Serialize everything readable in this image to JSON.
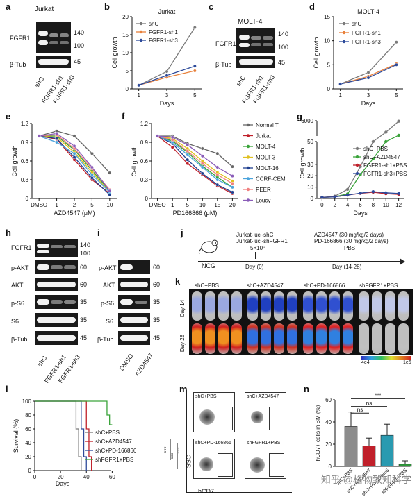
{
  "panels": {
    "a": {
      "label": "a",
      "cell_line": "Jurkat",
      "row_labels": [
        "FGFR1",
        "β-Tub"
      ],
      "markers": [
        "140",
        "100",
        "45"
      ],
      "lanes": [
        "shC",
        "FGFR1-sh1",
        "FGFR1-sh3"
      ]
    },
    "c": {
      "label": "c",
      "cell_line": "MOLT-4",
      "row_labels": [
        "FGFR1",
        "β-Tub"
      ],
      "markers": [
        "140",
        "100",
        "45"
      ],
      "lanes": [
        "shC",
        "FGFR1-sh1",
        "FGFR1-sh3"
      ]
    },
    "h": {
      "label": "h",
      "row_labels": [
        "FGFR1",
        "p-AKT",
        "AKT",
        "p-S6",
        "S6",
        "β-Tub"
      ],
      "markers": [
        "140",
        "100",
        "60",
        "60",
        "35",
        "35",
        "45"
      ],
      "lanes": [
        "shC",
        "FGFR1-sh1",
        "FGFR1-sh3"
      ]
    },
    "i": {
      "label": "i",
      "row_labels": [
        "p-AKT",
        "AKT",
        "p-S6",
        "S6",
        "β-Tub"
      ],
      "markers": [
        "60",
        "60",
        "35",
        "35",
        "45"
      ],
      "lanes": [
        "DMSO",
        "AZD4547"
      ]
    },
    "j": {
      "label": "j",
      "mouse": "NCG",
      "inj_line1": "Jurkat-luci-shC",
      "inj_line2": "Jurkat-luci-shFGFR1",
      "inj_dose": "5×10⁶",
      "day0": "Day (0)",
      "treat1": "AZD4547 (30 mg/kg/2 days)",
      "treat2": "PD-166866 (30 mg/kg/2 days)",
      "treat3": "PBS",
      "day_range": "Day (14-28)"
    },
    "k": {
      "label": "k",
      "groups": [
        "shC+PBS",
        "shC+AZD4547",
        "shC+PD-166866",
        "shFGFR1+PBS"
      ],
      "rows": [
        "Day 14",
        "Day 28"
      ],
      "scale_min": "4e4",
      "scale_max": "1e6"
    },
    "m": {
      "label": "m",
      "boxes": [
        "shC+PBS",
        "shC+AZD4547",
        "shC+PD-166866",
        "shFGFR1+PBS"
      ],
      "ylabel": "SSC",
      "xlabel": "hCD7"
    }
  },
  "watermark": "知乎 @格物致知科学",
  "chart_data": [
    {
      "panel": "b",
      "type": "line",
      "title": "Jurkat",
      "xlabel": "Days",
      "ylabel": "Cell growth",
      "x": [
        1,
        3,
        5
      ],
      "ylim": [
        0,
        20
      ],
      "yticks": [
        0,
        5,
        10,
        15,
        20
      ],
      "series": [
        {
          "name": "shC",
          "values": [
            1,
            4.8,
            17
          ],
          "color": "#7a7a7a"
        },
        {
          "name": "FGFR1-sh1",
          "values": [
            1,
            3.2,
            5
          ],
          "color": "#e8803a"
        },
        {
          "name": "FGFR1-sh3",
          "values": [
            1,
            3.7,
            6.3
          ],
          "color": "#2d4a9a"
        }
      ]
    },
    {
      "panel": "d",
      "type": "line",
      "title": "MOLT-4",
      "xlabel": "Days",
      "ylabel": "Cell growth",
      "x": [
        1,
        3,
        5
      ],
      "ylim": [
        0,
        15
      ],
      "yticks": [
        0,
        5,
        10,
        15
      ],
      "series": [
        {
          "name": "shC",
          "values": [
            1,
            3.4,
            9.7
          ],
          "color": "#7a7a7a"
        },
        {
          "name": "FGFR1-sh1",
          "values": [
            1,
            2.6,
            5.2
          ],
          "color": "#e8803a"
        },
        {
          "name": "FGFR1-sh3",
          "values": [
            1,
            2.3,
            5.0
          ],
          "color": "#2d4a9a"
        }
      ]
    },
    {
      "panel": "e",
      "type": "line",
      "xlabel": "AZD4547 (μM)",
      "ylabel": "Cell growth",
      "categories": [
        "DMSO",
        "1",
        "2",
        "5",
        "10"
      ],
      "ylim": [
        0,
        1.2
      ],
      "yticks": [
        0,
        0.3,
        0.6,
        0.9,
        1.2
      ],
      "series": [
        {
          "name": "Normal T",
          "values": [
            1.0,
            1.08,
            1.0,
            0.72,
            0.41
          ],
          "color": "#666666"
        },
        {
          "name": "Jurkat",
          "values": [
            1.0,
            0.95,
            0.62,
            0.3,
            0.08
          ],
          "color": "#c0202a"
        },
        {
          "name": "MOLT-4",
          "values": [
            1.0,
            1.0,
            0.78,
            0.45,
            0.12
          ],
          "color": "#3aa33a"
        },
        {
          "name": "MOLT-3",
          "values": [
            1.0,
            0.98,
            0.74,
            0.42,
            0.1
          ],
          "color": "#e0c020"
        },
        {
          "name": "MOLT-16",
          "values": [
            1.0,
            0.96,
            0.66,
            0.33,
            0.06
          ],
          "color": "#1f3f8f"
        },
        {
          "name": "CCRF-CEM",
          "values": [
            1.0,
            0.9,
            0.72,
            0.38,
            0.1
          ],
          "color": "#4aa3dc"
        },
        {
          "name": "PEER",
          "values": [
            1.0,
            1.02,
            0.8,
            0.48,
            0.14
          ],
          "color": "#f08080"
        },
        {
          "name": "Loucy",
          "values": [
            1.0,
            1.04,
            0.84,
            0.5,
            0.12
          ],
          "color": "#8a5cb8"
        }
      ]
    },
    {
      "panel": "f",
      "type": "line",
      "xlabel": "PD166866 (μM)",
      "ylabel": "Cell growth",
      "categories": [
        "DMSO",
        "1",
        "5",
        "10",
        "15",
        "20"
      ],
      "ylim": [
        0,
        1.2
      ],
      "yticks": [
        0,
        0.3,
        0.6,
        0.9,
        1.2
      ],
      "series": [
        {
          "name": "Normal T",
          "values": [
            1.0,
            1.0,
            0.88,
            0.8,
            0.72,
            0.51
          ],
          "color": "#666666"
        },
        {
          "name": "Jurkat",
          "values": [
            1.0,
            0.82,
            0.56,
            0.38,
            0.2,
            0.08
          ],
          "color": "#c0202a"
        },
        {
          "name": "MOLT-4",
          "values": [
            1.0,
            0.92,
            0.74,
            0.52,
            0.34,
            0.18
          ],
          "color": "#3aa33a"
        },
        {
          "name": "MOLT-3",
          "values": [
            1.0,
            0.96,
            0.8,
            0.6,
            0.42,
            0.28
          ],
          "color": "#e0c020"
        },
        {
          "name": "MOLT-16",
          "values": [
            1.0,
            0.88,
            0.62,
            0.4,
            0.22,
            0.1
          ],
          "color": "#1f3f8f"
        },
        {
          "name": "CCRF-CEM",
          "values": [
            1.0,
            0.9,
            0.7,
            0.5,
            0.3,
            0.18
          ],
          "color": "#4aa3dc"
        },
        {
          "name": "PEER",
          "values": [
            1.0,
            0.94,
            0.76,
            0.56,
            0.38,
            0.24
          ],
          "color": "#f08080"
        },
        {
          "name": "Loucy",
          "values": [
            1.0,
            0.98,
            0.86,
            0.68,
            0.5,
            0.36
          ],
          "color": "#8a5cb8"
        }
      ]
    },
    {
      "panel": "g",
      "type": "line",
      "xlabel": "Days",
      "ylabel": "Cell growth",
      "x": [
        0,
        2,
        4,
        6,
        8,
        10,
        12
      ],
      "ylim": [
        0,
        6000
      ],
      "yticks": [
        0,
        10,
        20,
        30,
        50,
        6000
      ],
      "broken_axis": true,
      "series": [
        {
          "name": "shC+PBS",
          "values": [
            1,
            2,
            8,
            28,
            50,
            1500,
            5800
          ],
          "color": "#7a7a7a"
        },
        {
          "name": "shC+AZD4547",
          "values": [
            1,
            1.5,
            4,
            21,
            35,
            50,
            300
          ],
          "color": "#3aa33a"
        },
        {
          "name": "FGFR1-sh1+PBS",
          "values": [
            1,
            1.5,
            3,
            4.5,
            5.5,
            4.2,
            3.6
          ],
          "color": "#c0202a"
        },
        {
          "name": "FGFR1-sh3+PBS",
          "values": [
            1,
            1.4,
            3,
            4.7,
            6,
            5,
            4.4
          ],
          "color": "#2d4a9a"
        }
      ]
    },
    {
      "panel": "l",
      "type": "line",
      "xlabel": "Days",
      "ylabel": "Survival (%)",
      "xlim": [
        0,
        80
      ],
      "ylim": [
        0,
        100
      ],
      "xticks": [
        0,
        20,
        40,
        60
      ],
      "yticks": [
        0,
        20,
        40,
        60,
        80,
        100
      ],
      "series": [
        {
          "name": "shC+PBS",
          "values": [
            [
              0,
              100
            ],
            [
              32,
              100
            ],
            [
              32,
              60
            ],
            [
              34,
              60
            ],
            [
              34,
              20
            ],
            [
              36,
              20
            ],
            [
              36,
              0
            ]
          ],
          "color": "#7a7a7a"
        },
        {
          "name": "shC+AZD4547",
          "values": [
            [
              0,
              100
            ],
            [
              40,
              100
            ],
            [
              40,
              60
            ],
            [
              42,
              60
            ],
            [
              42,
              20
            ],
            [
              44,
              20
            ],
            [
              44,
              0
            ]
          ],
          "color": "#c0202a"
        },
        {
          "name": "shC+PD-166866",
          "values": [
            [
              0,
              100
            ],
            [
              36,
              100
            ],
            [
              36,
              60
            ],
            [
              38,
              60
            ],
            [
              38,
              20
            ],
            [
              40,
              20
            ],
            [
              40,
              0
            ]
          ],
          "color": "#2d4a9a"
        },
        {
          "name": "shFGFR1+PBS",
          "values": [
            [
              0,
              100
            ],
            [
              56,
              100
            ],
            [
              56,
              80
            ],
            [
              58,
              80
            ],
            [
              58,
              66
            ],
            [
              60,
              66
            ]
          ],
          "color": "#3aa33a"
        }
      ],
      "annotations": [
        "***",
        "***",
        "***"
      ]
    },
    {
      "panel": "n",
      "type": "bar",
      "ylabel": "hCD7+ cells in BM (%)",
      "categories": [
        "shC+PBS",
        "shC+AZD4547",
        "shC+PD-166866",
        "shFGFR1+PBS"
      ],
      "values": [
        36,
        18.5,
        28,
        2
      ],
      "errors": [
        13,
        7,
        10,
        3
      ],
      "ylim": [
        0,
        60
      ],
      "yticks": [
        0,
        20,
        40,
        60
      ],
      "colors": [
        "#8c8c8c",
        "#c0202a",
        "#2a9ab0",
        "#2e9a3a"
      ],
      "annotations": [
        {
          "text": "ns",
          "between": [
            0,
            1
          ]
        },
        {
          "text": "ns",
          "between": [
            0,
            2
          ]
        },
        {
          "text": "***",
          "between": [
            0,
            3
          ]
        }
      ]
    }
  ]
}
